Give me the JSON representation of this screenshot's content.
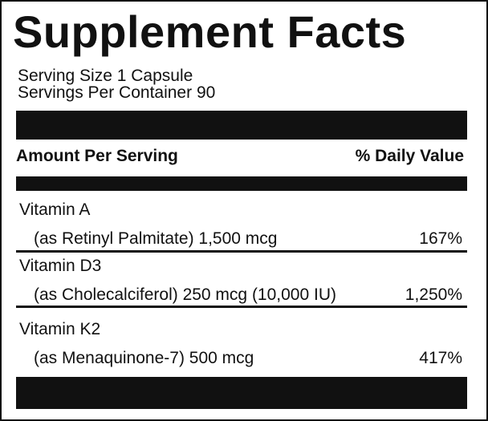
{
  "title": "Supplement Facts",
  "serving_size": "Serving Size 1 Capsule",
  "servings_per_container": "Servings Per Container 90",
  "header": {
    "amount_label": "Amount Per Serving",
    "dv_label": "% Daily Value"
  },
  "nutrients": [
    {
      "name": "Vitamin A",
      "detail": "(as Retinyl Palmitate) 1,500 mcg",
      "dv": "167%"
    },
    {
      "name": "Vitamin D3",
      "detail": "(as Cholecalciferol) 250 mcg (10,000 IU)",
      "dv": "1,250%"
    },
    {
      "name": "Vitamin K2",
      "detail": "(as Menaquinone-7) 500 mcg",
      "dv": "417%"
    }
  ],
  "colors": {
    "ink": "#111111",
    "background": "#ffffff"
  }
}
